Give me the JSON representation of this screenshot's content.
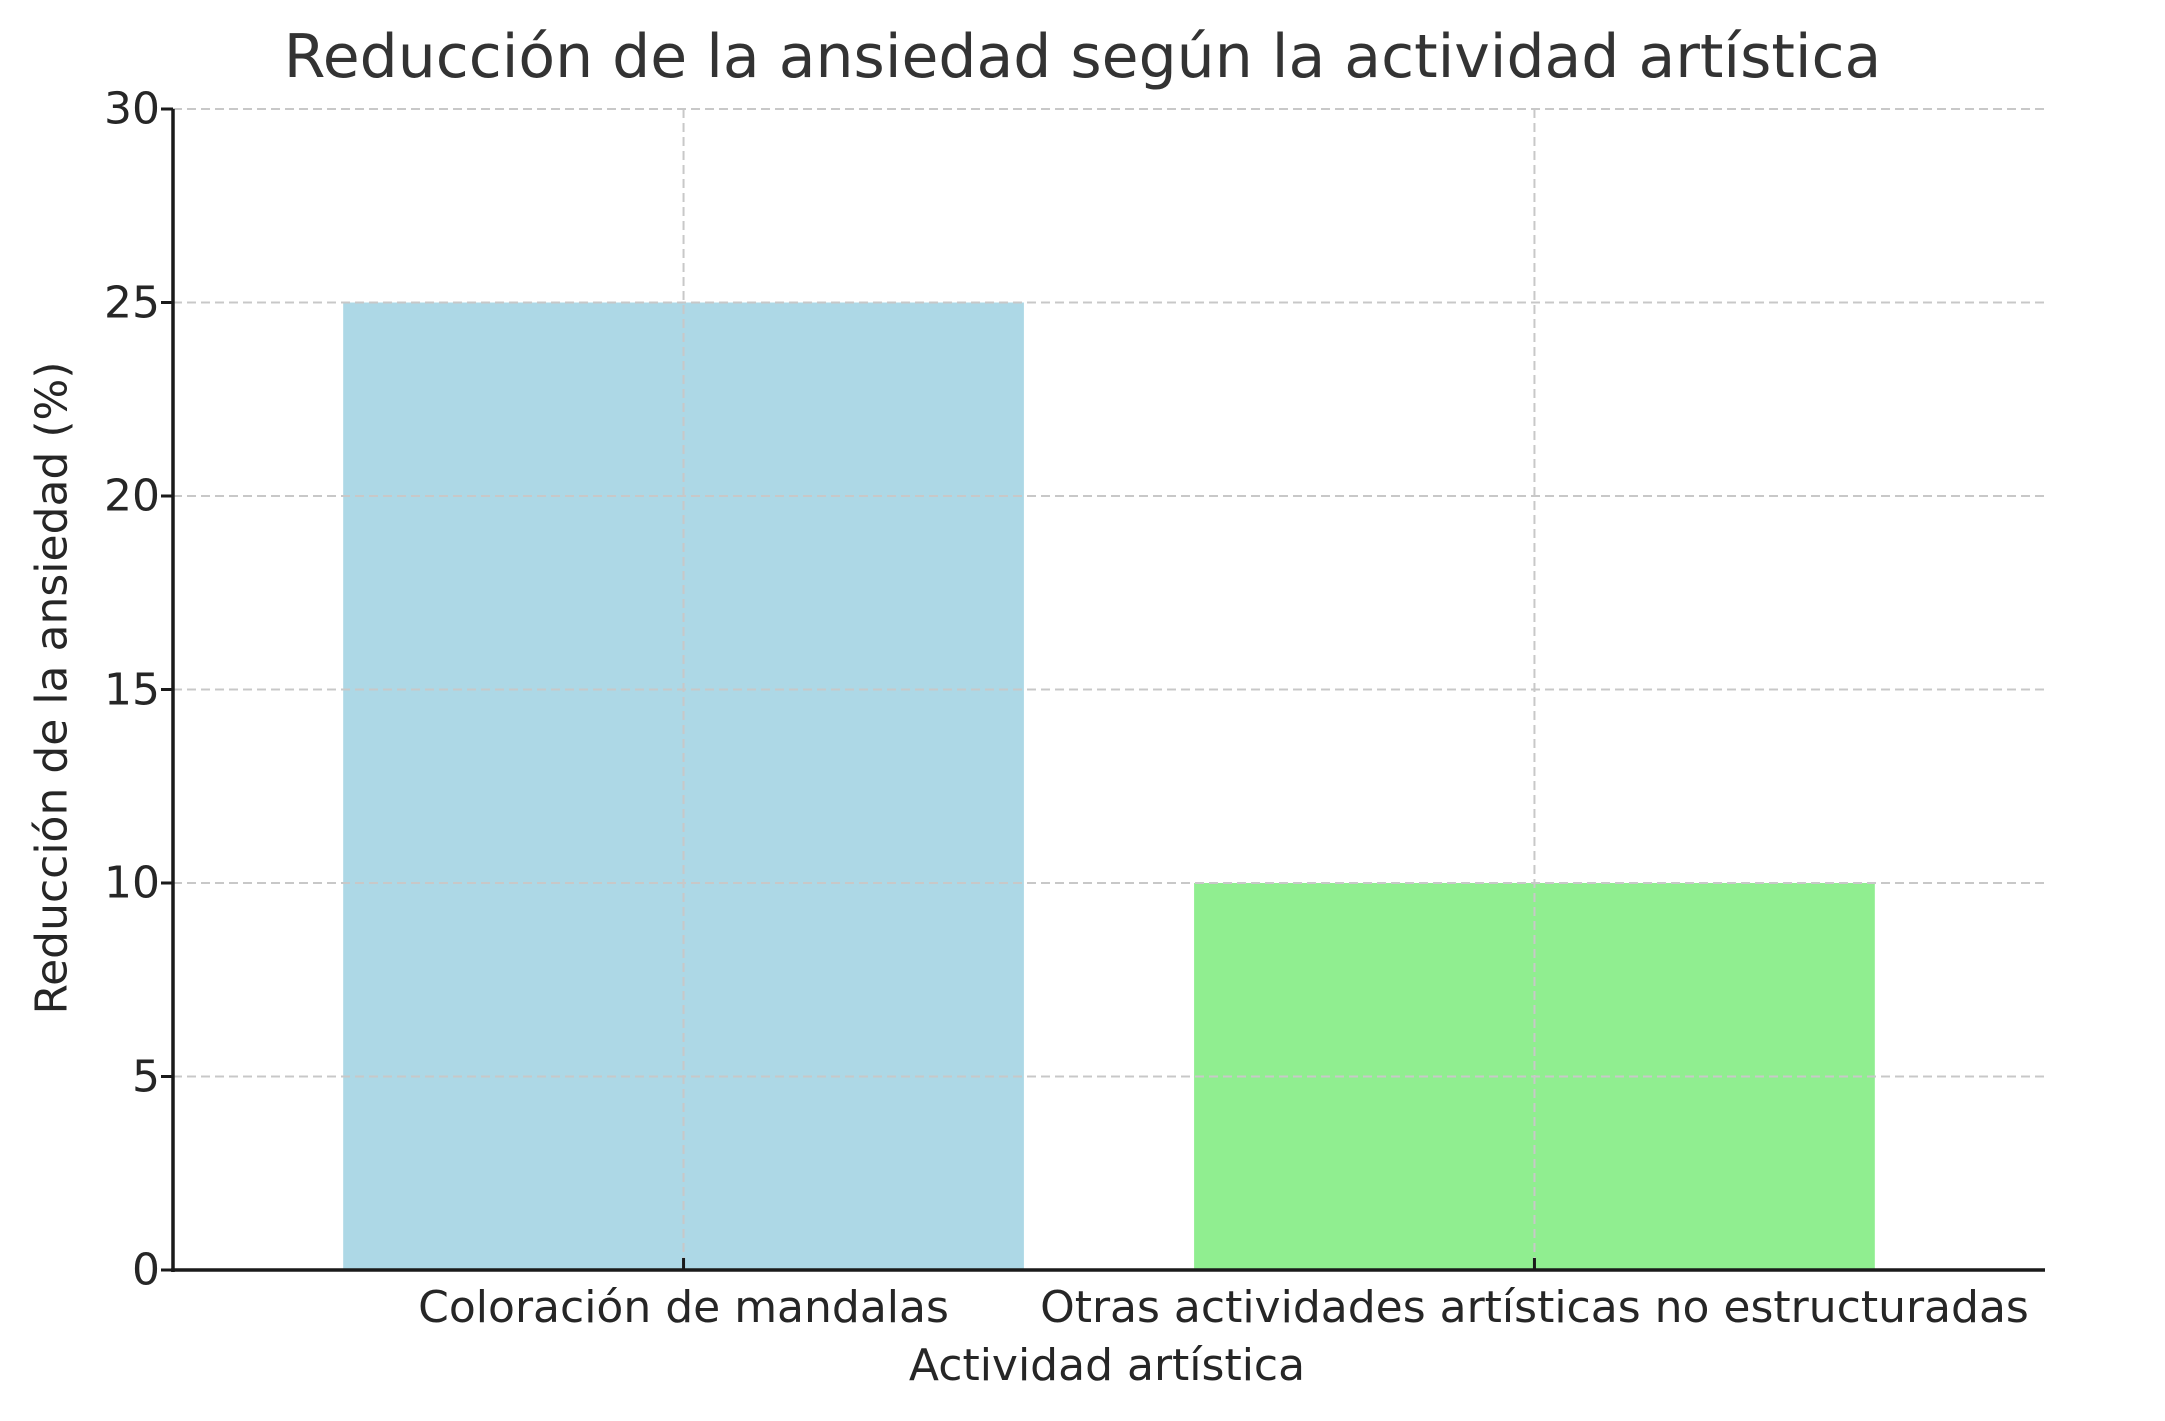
{
  "chart_data": {
    "type": "bar",
    "title": "Reducción de la ansiedad según la actividad artística",
    "xlabel": "Actividad artística",
    "ylabel": "Reducción de la ansiedad (%)",
    "categories": [
      "Coloración de mandalas",
      "Otras actividades artísticas no estructuradas"
    ],
    "values": [
      25,
      10
    ],
    "colors": [
      "#add8e6",
      "#90ee90"
    ],
    "ylim": [
      0,
      30
    ],
    "yticks": [
      0,
      5,
      10,
      15,
      20,
      25,
      30
    ],
    "grid": true,
    "legend": null
  },
  "labels": {
    "title": "Reducción de la ansiedad según la actividad artística",
    "xlabel": "Actividad artística",
    "ylabel": "Reducción de la ansiedad (%)",
    "yticks": [
      "0",
      "5",
      "10",
      "15",
      "20",
      "25",
      "30"
    ],
    "xticks": [
      "Coloración de mandalas",
      "Otras actividades artísticas no estructuradas"
    ]
  }
}
